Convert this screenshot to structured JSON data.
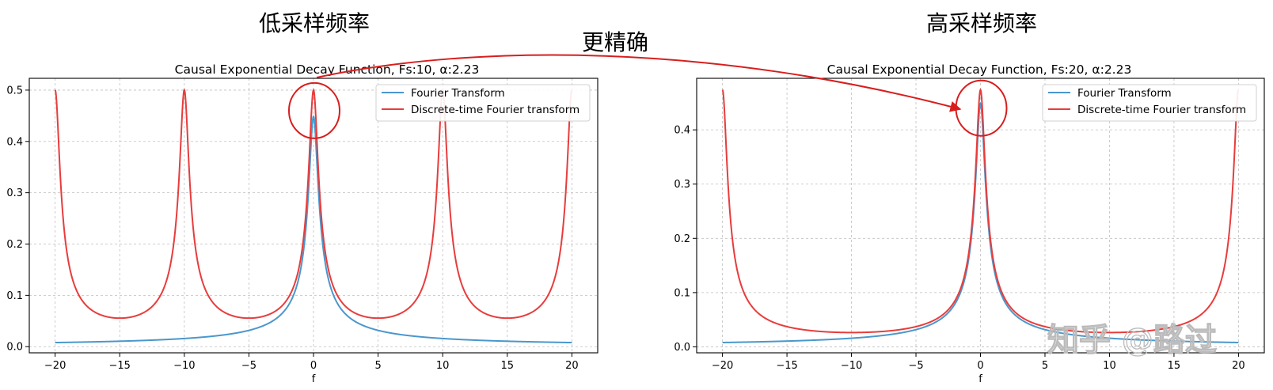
{
  "annotations": {
    "left_header": "低采样频率",
    "right_header": "高采样频率",
    "arrow_label": "更精确",
    "watermark": "知乎 @路过"
  },
  "colors": {
    "fourier": "#4a97cc",
    "dtft": "#e83c3c",
    "annotation": "#d81e1e",
    "grid": "#bfbfbf"
  },
  "chart_data": [
    {
      "type": "line",
      "title": "Causal Exponential Decay Function, Fs:10, α:2.23",
      "xlabel": "f",
      "ylabel": "",
      "xlim": [
        -22,
        22
      ],
      "ylim": [
        -0.012,
        0.523
      ],
      "xticks": [
        -20,
        -15,
        -10,
        -5,
        0,
        5,
        10,
        15,
        20
      ],
      "xtick_labels": [
        "−20",
        "−15",
        "−10",
        "−5",
        "0",
        "5",
        "10",
        "15",
        "20"
      ],
      "yticks": [
        0.0,
        0.1,
        0.2,
        0.3,
        0.4,
        0.5
      ],
      "ytick_labels": [
        "0.0",
        "0.1",
        "0.2",
        "0.3",
        "0.4",
        "0.5"
      ],
      "grid": true,
      "legend_position": "top-right",
      "alpha": 2.23,
      "fs": 10,
      "x_range": [
        -20,
        20
      ],
      "series": [
        {
          "name": "Fourier Transform",
          "model": "continuous",
          "color": "#4a97cc"
        },
        {
          "name": "Discrete-time Fourier transform",
          "model": "dtft",
          "color": "#e83c3c"
        }
      ],
      "annotated_peak": {
        "x": 0,
        "y": 0.46
      }
    },
    {
      "type": "line",
      "title": "Causal Exponential Decay Function, Fs:20, α:2.23",
      "xlabel": "f",
      "ylabel": "",
      "xlim": [
        -22,
        22
      ],
      "ylim": [
        -0.011,
        0.495
      ],
      "xticks": [
        -20,
        -15,
        -10,
        -5,
        0,
        5,
        10,
        15,
        20
      ],
      "xtick_labels": [
        "−20",
        "−15",
        "−10",
        "−5",
        "0",
        "5",
        "10",
        "15",
        "20"
      ],
      "yticks": [
        0.0,
        0.1,
        0.2,
        0.3,
        0.4
      ],
      "ytick_labels": [
        "0.0",
        "0.1",
        "0.2",
        "0.3",
        "0.4"
      ],
      "grid": true,
      "legend_position": "top-right",
      "alpha": 2.23,
      "fs": 20,
      "x_range": [
        -20,
        20
      ],
      "series": [
        {
          "name": "Fourier Transform",
          "model": "continuous",
          "color": "#4a97cc"
        },
        {
          "name": "Discrete-time Fourier transform",
          "model": "dtft",
          "color": "#e83c3c"
        }
      ],
      "annotated_peak": {
        "x": 0,
        "y": 0.44
      }
    }
  ]
}
